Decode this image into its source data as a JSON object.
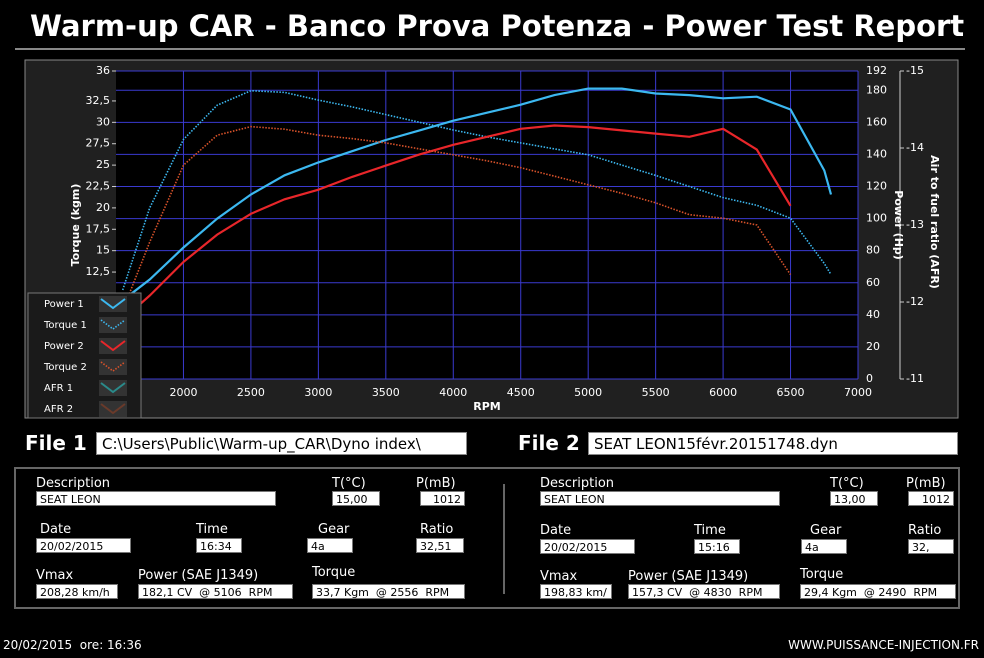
{
  "header": {
    "title": "Warm-up CAR  - Banco Prova Potenza -  Power Test Report"
  },
  "chart_data": {
    "type": "line",
    "x_label": "RPM",
    "y_label": "Torque (kgm)",
    "y2_label": "Power (Hp)",
    "y3_label": "Air to fuel ratio (AFR)",
    "x": [
      1550,
      1750,
      2000,
      2250,
      2500,
      2750,
      3000,
      3250,
      3500,
      3750,
      4000,
      4250,
      4500,
      4750,
      5000,
      5250,
      5500,
      5750,
      6000,
      6250,
      6500,
      6750,
      6800
    ],
    "xlim": [
      1500,
      7000
    ],
    "xticks": [
      2000,
      2500,
      3000,
      3500,
      4000,
      4500,
      5000,
      5500,
      6000,
      6500,
      7000
    ],
    "ylim": [
      0,
      36
    ],
    "yticks": [
      {
        "value": 12.5,
        "label": "12,5"
      },
      15,
      {
        "value": 17.5,
        "label": "17,5"
      },
      20,
      {
        "value": 22.5,
        "label": "22,5"
      },
      25,
      {
        "value": 27.5,
        "label": "27,5"
      },
      30,
      {
        "value": 32.5,
        "label": "32,5"
      },
      36
    ],
    "y2lim": [
      0,
      192
    ],
    "y2ticks": [
      0,
      20,
      40,
      60,
      80,
      100,
      120,
      140,
      160,
      180,
      192
    ],
    "y3lim": [
      -11,
      -15
    ],
    "y3ticks": [
      -15,
      -14,
      -13,
      -12,
      -11
    ],
    "grid": true,
    "series": [
      {
        "name": "Power 1",
        "color": "#3cb8f0",
        "style": "solid",
        "axis": "y2",
        "values": [
          49,
          62,
          82,
          100,
          115,
          127,
          135,
          142,
          149,
          155,
          161,
          166,
          171,
          177,
          181,
          181,
          178,
          177,
          175,
          176,
          168,
          130,
          115
        ]
      },
      {
        "name": "Torque 1",
        "color": "#3cb8f0",
        "style": "dotted",
        "axis": "y",
        "values": [
          10.4,
          20,
          28,
          32,
          33.7,
          33.5,
          32.6,
          31.8,
          30.9,
          30,
          29.1,
          28.3,
          27.6,
          26.9,
          26.2,
          25,
          23.8,
          22.5,
          21.2,
          20.3,
          18.8,
          13.5,
          12.2
        ]
      },
      {
        "name": "Power 2",
        "color": "#e8262a",
        "style": "solid",
        "axis": "y2",
        "values": [
          37,
          52,
          73,
          90,
          103,
          112,
          118,
          126,
          133,
          140,
          146,
          151,
          156,
          158,
          157,
          155,
          153,
          151,
          156,
          143,
          108,
          null,
          null
        ]
      },
      {
        "name": "Torque 2",
        "color": "#d8522a",
        "style": "dotted",
        "axis": "y",
        "values": [
          8,
          16,
          25,
          28.5,
          29.5,
          29.2,
          28.5,
          28.1,
          27.6,
          26.9,
          26.2,
          25.5,
          24.7,
          23.7,
          22.7,
          21.7,
          20.6,
          19.2,
          18.8,
          18,
          12.2,
          null,
          null
        ]
      },
      {
        "name": "AFR 1",
        "color": "#2a8a8a",
        "style": "solid",
        "axis": "y3",
        "values": [
          null,
          null,
          null,
          null,
          null,
          null,
          null,
          null,
          null,
          null,
          null,
          null,
          null,
          null,
          null,
          null,
          null,
          null,
          null,
          null,
          null,
          null,
          null
        ]
      },
      {
        "name": "AFR 2",
        "color": "#6a3a2a",
        "style": "solid",
        "axis": "y3",
        "values": [
          null,
          null,
          null,
          null,
          null,
          null,
          null,
          null,
          null,
          null,
          null,
          null,
          null,
          null,
          null,
          null,
          null,
          null,
          null,
          null,
          null,
          null,
          null
        ]
      }
    ]
  },
  "files": [
    {
      "label": "File 1",
      "path": "C:\\Users\\Public\\Warm-up_CAR\\Dyno index\\"
    },
    {
      "label": "File 2",
      "path": "SEAT LEON15févr.20151748.dyn"
    }
  ],
  "panels": [
    {
      "fields": [
        {
          "label": "Description",
          "value": "SEAT LEON"
        },
        {
          "label": "T(°C)",
          "value": "15,00"
        },
        {
          "label": "P(mB)",
          "value": "1012"
        },
        {
          "label": "Date",
          "value": "20/02/2015"
        },
        {
          "label": "Time",
          "value": "16:34"
        },
        {
          "label": "Gear",
          "value": "4a"
        },
        {
          "label": "Ratio",
          "value": "32,51"
        },
        {
          "label": "Vmax",
          "value": "208,28 km/h"
        },
        {
          "label": "Power (SAE J1349)",
          "value": "182,1 CV  @ 5106  RPM"
        },
        {
          "label": "Torque",
          "value": "33,7 Kgm  @ 2556  RPM"
        }
      ]
    },
    {
      "fields": [
        {
          "label": "Description",
          "value": "SEAT LEON"
        },
        {
          "label": "T(°C)",
          "value": "13,00"
        },
        {
          "label": "P(mB)",
          "value": "1012"
        },
        {
          "label": "Date",
          "value": "20/02/2015"
        },
        {
          "label": "Time",
          "value": "15:16"
        },
        {
          "label": "Gear",
          "value": "4a"
        },
        {
          "label": "Ratio",
          "value": "32,"
        },
        {
          "label": "Vmax",
          "value": "198,83 km/"
        },
        {
          "label": "Power (SAE J1349)",
          "value": "157,3 CV  @ 4830  RPM"
        },
        {
          "label": "Torque",
          "value": "29,4 Kgm  @ 2490  RPM"
        }
      ]
    }
  ],
  "footer": {
    "timestamp": "20/02/2015  ore: 16:36",
    "website": "WWW.PUISSANCE-INJECTION.FR"
  }
}
